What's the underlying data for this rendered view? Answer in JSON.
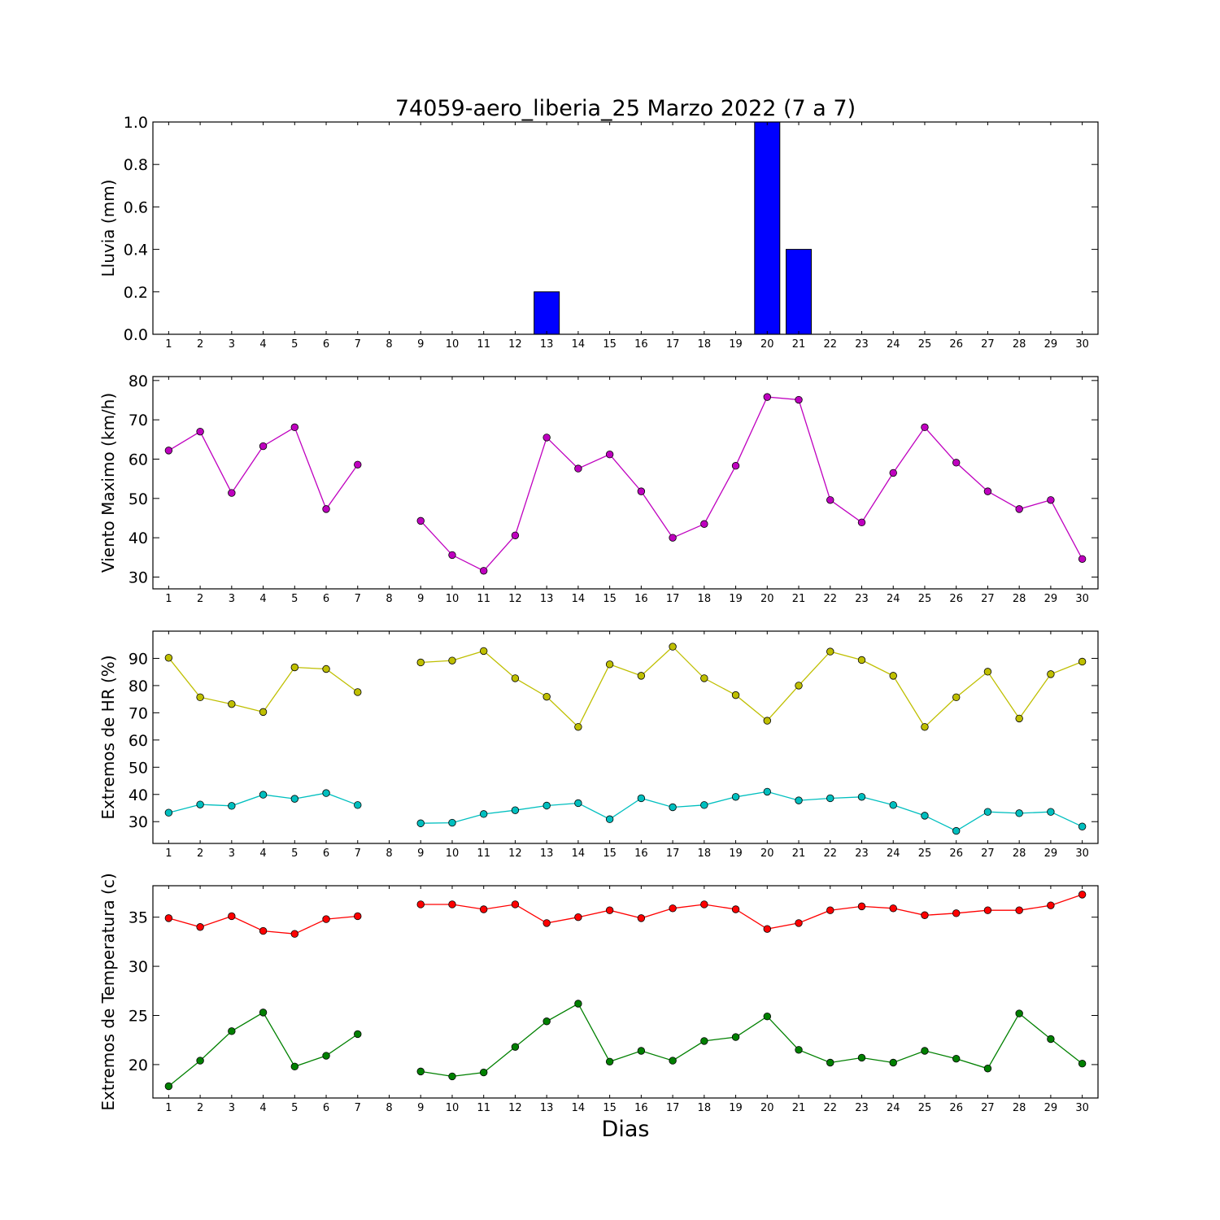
{
  "title": "74059-aero_liberia_25 Marzo 2022  (7 a 7)",
  "xlabel": "Dias",
  "x_ticks": [
    1,
    2,
    3,
    4,
    5,
    6,
    7,
    8,
    9,
    10,
    11,
    12,
    13,
    14,
    15,
    16,
    17,
    18,
    19,
    20,
    21,
    22,
    23,
    24,
    25,
    26,
    27,
    28,
    29,
    30
  ],
  "colors": {
    "rain_bar": "#0000ff",
    "wind": "#bf00bf",
    "hr_max": "#bfbf00",
    "hr_min": "#00bfbf",
    "temp_max": "#ff0000",
    "temp_min": "#008000"
  },
  "chart_data": [
    {
      "type": "bar",
      "ylabel": "Lluvia (mm)",
      "ylim": [
        0,
        1.0
      ],
      "yticks": [
        "0.0",
        "0.2",
        "0.4",
        "0.6",
        "0.8",
        "1.0"
      ],
      "x": [
        1,
        2,
        3,
        4,
        5,
        6,
        7,
        8,
        9,
        10,
        11,
        12,
        13,
        14,
        15,
        16,
        17,
        18,
        19,
        20,
        21,
        22,
        23,
        24,
        25,
        26,
        27,
        28,
        29,
        30
      ],
      "values": [
        0,
        0,
        0,
        0,
        0,
        0,
        0,
        null,
        0,
        0,
        0,
        0,
        0.2,
        0,
        0,
        0,
        0,
        0,
        0,
        1.0,
        0.4,
        0,
        0,
        0,
        0,
        0,
        0,
        0,
        0,
        0
      ]
    },
    {
      "type": "line",
      "ylabel": "Viento Maximo (km/h)",
      "ylim": [
        27,
        81
      ],
      "yticks": [
        "30",
        "40",
        "50",
        "60",
        "70",
        "80"
      ],
      "x": [
        1,
        2,
        3,
        4,
        5,
        6,
        7,
        8,
        9,
        10,
        11,
        12,
        13,
        14,
        15,
        16,
        17,
        18,
        19,
        20,
        21,
        22,
        23,
        24,
        25,
        26,
        27,
        28,
        29,
        30
      ],
      "series": [
        {
          "values": [
            62.2,
            67.0,
            51.4,
            63.3,
            68.1,
            47.3,
            58.6,
            null,
            44.3,
            35.6,
            31.6,
            40.6,
            65.5,
            57.6,
            61.2,
            51.8,
            40.0,
            43.5,
            58.3,
            75.8,
            75.1,
            49.6,
            43.9,
            56.5,
            68.1,
            59.1,
            51.8,
            47.3,
            49.6,
            34.6
          ]
        }
      ]
    },
    {
      "type": "line",
      "ylabel": "Extremos de HR (%)",
      "ylim": [
        22,
        100
      ],
      "yticks": [
        "30",
        "40",
        "50",
        "60",
        "70",
        "80",
        "90"
      ],
      "x": [
        1,
        2,
        3,
        4,
        5,
        6,
        7,
        8,
        9,
        10,
        11,
        12,
        13,
        14,
        15,
        16,
        17,
        18,
        19,
        20,
        21,
        22,
        23,
        24,
        25,
        26,
        27,
        28,
        29,
        30
      ],
      "series": [
        {
          "values": [
            90.2,
            75.7,
            73.2,
            70.3,
            86.7,
            86.1,
            77.6,
            null,
            88.5,
            89.2,
            92.7,
            82.7,
            75.9,
            64.8,
            87.8,
            83.6,
            94.3,
            82.7,
            76.5,
            67.1,
            80.0,
            92.5,
            89.4,
            83.6,
            64.8,
            75.7,
            85.1,
            67.9,
            84.2,
            88.8
          ]
        },
        {
          "values": [
            33.3,
            36.3,
            35.8,
            39.9,
            38.4,
            40.5,
            36.1,
            null,
            29.4,
            29.6,
            32.8,
            34.2,
            35.9,
            36.8,
            30.9,
            38.6,
            35.3,
            36.1,
            39.1,
            41.0,
            37.8,
            38.6,
            39.1,
            36.1,
            32.2,
            26.6,
            33.6,
            33.1,
            33.6,
            28.2
          ]
        }
      ]
    },
    {
      "type": "line",
      "ylabel": "Extremos de Temperatura (c)",
      "ylim": [
        16.6,
        38.2
      ],
      "yticks": [
        "20",
        "25",
        "30",
        "35"
      ],
      "x": [
        1,
        2,
        3,
        4,
        5,
        6,
        7,
        8,
        9,
        10,
        11,
        12,
        13,
        14,
        15,
        16,
        17,
        18,
        19,
        20,
        21,
        22,
        23,
        24,
        25,
        26,
        27,
        28,
        29,
        30
      ],
      "series": [
        {
          "values": [
            34.9,
            34.0,
            35.1,
            33.6,
            33.3,
            34.8,
            35.1,
            null,
            36.3,
            36.3,
            35.8,
            36.3,
            34.4,
            35.0,
            35.7,
            34.9,
            35.9,
            36.3,
            35.8,
            33.8,
            34.4,
            35.7,
            36.1,
            35.9,
            35.2,
            35.4,
            35.7,
            35.7,
            36.2,
            37.3
          ]
        },
        {
          "values": [
            17.8,
            20.4,
            23.4,
            25.3,
            19.8,
            20.9,
            23.1,
            null,
            19.3,
            18.8,
            19.2,
            21.8,
            24.4,
            26.2,
            20.3,
            21.4,
            20.4,
            22.4,
            22.8,
            24.9,
            21.5,
            20.2,
            20.7,
            20.2,
            21.4,
            20.6,
            19.6,
            25.2,
            22.6,
            20.1
          ]
        }
      ]
    }
  ]
}
